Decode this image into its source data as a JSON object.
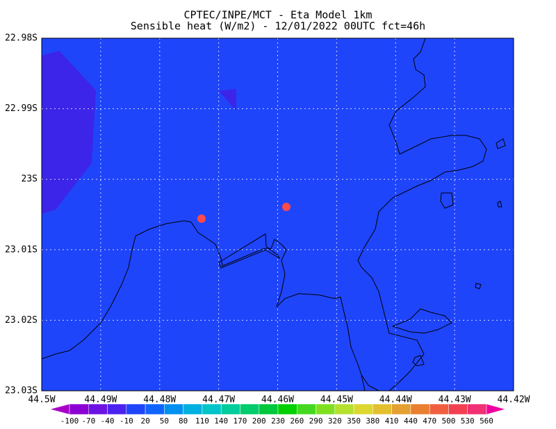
{
  "title": [
    "CPTEC/INPE/MCT -  Eta Model 1km",
    "Sensible heat (W/m2) - 12/01/2022 00UTC fct=46h"
  ],
  "y_axis": {
    "labels": [
      "22.98S",
      "22.99S",
      "23S",
      "23.01S",
      "23.02S",
      "23.03S"
    ]
  },
  "x_axis": {
    "labels": [
      "44.5W",
      "44.49W",
      "44.48W",
      "44.47W",
      "44.46W",
      "44.45W",
      "44.44W",
      "44.43W",
      "44.42W"
    ]
  },
  "colorbar": {
    "labels": [
      -100,
      -70,
      -40,
      -10,
      20,
      50,
      80,
      110,
      140,
      170,
      200,
      230,
      260,
      290,
      320,
      350,
      380,
      410,
      440,
      470,
      500,
      530,
      560
    ]
  }
}
